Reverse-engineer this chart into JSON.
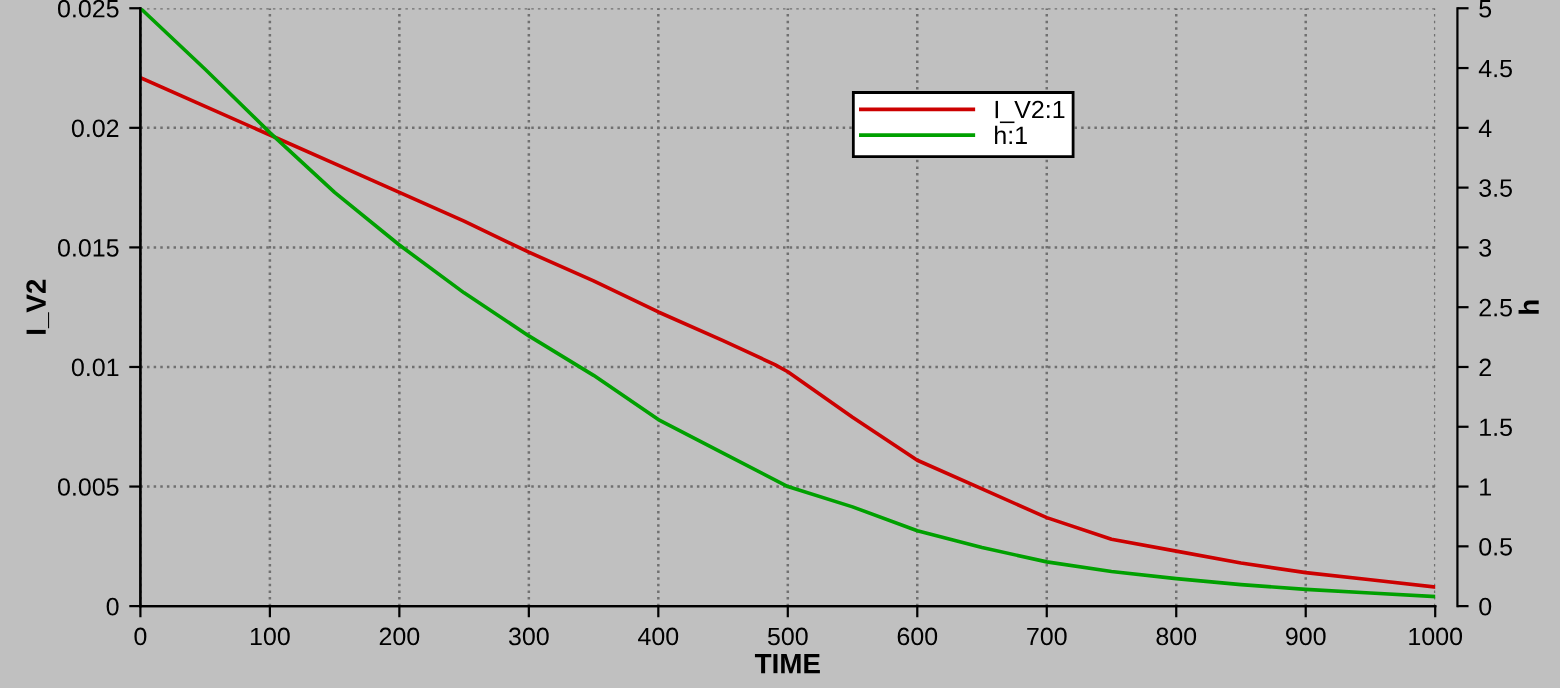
{
  "chart_data": {
    "type": "line",
    "xlabel": "TIME",
    "ylabel": "I_V2",
    "y2label": "h",
    "xlim": [
      0,
      1000
    ],
    "xticks": [
      0,
      100,
      200,
      300,
      400,
      500,
      600,
      700,
      800,
      900,
      1000
    ],
    "ylim": [
      0,
      0.025
    ],
    "yticks": [
      0,
      0.005,
      0.01,
      0.015,
      0.02,
      0.025
    ],
    "y2lim": [
      0,
      5
    ],
    "y2ticks": [
      0,
      0.5,
      1,
      1.5,
      2,
      2.5,
      3,
      3.5,
      4,
      4.5,
      5
    ],
    "grid": true,
    "legend": "top right",
    "marker": "none",
    "line_style": "solid",
    "series": [
      {
        "name": "I_V2:1",
        "color": "#cc0000",
        "x": [
          0,
          50,
          100,
          150,
          200,
          250,
          300,
          350,
          400,
          450,
          490,
          500,
          550,
          600,
          650,
          700,
          750,
          800,
          850,
          900,
          950,
          1000
        ],
        "values": [
          0.0221,
          0.0209,
          0.0197,
          0.0185,
          0.0173,
          0.0161,
          0.0148,
          0.0136,
          0.0123,
          0.0111,
          0.0101,
          0.0098,
          0.0079,
          0.0061,
          0.0049,
          0.0037,
          0.0028,
          0.0023,
          0.0018,
          0.0014,
          0.0011,
          0.0008
        ]
      },
      {
        "name": "h:1",
        "color": "#00a000",
        "axis": "y2",
        "x": [
          0,
          50,
          100,
          150,
          200,
          250,
          300,
          350,
          400,
          450,
          500,
          550,
          600,
          650,
          700,
          750,
          800,
          850,
          900,
          950,
          1000
        ],
        "values": [
          5.0,
          4.49,
          3.96,
          3.46,
          3.02,
          2.62,
          2.26,
          1.93,
          1.56,
          1.28,
          1.0,
          0.83,
          0.63,
          0.49,
          0.37,
          0.29,
          0.23,
          0.18,
          0.14,
          0.11,
          0.08
        ]
      }
    ]
  }
}
